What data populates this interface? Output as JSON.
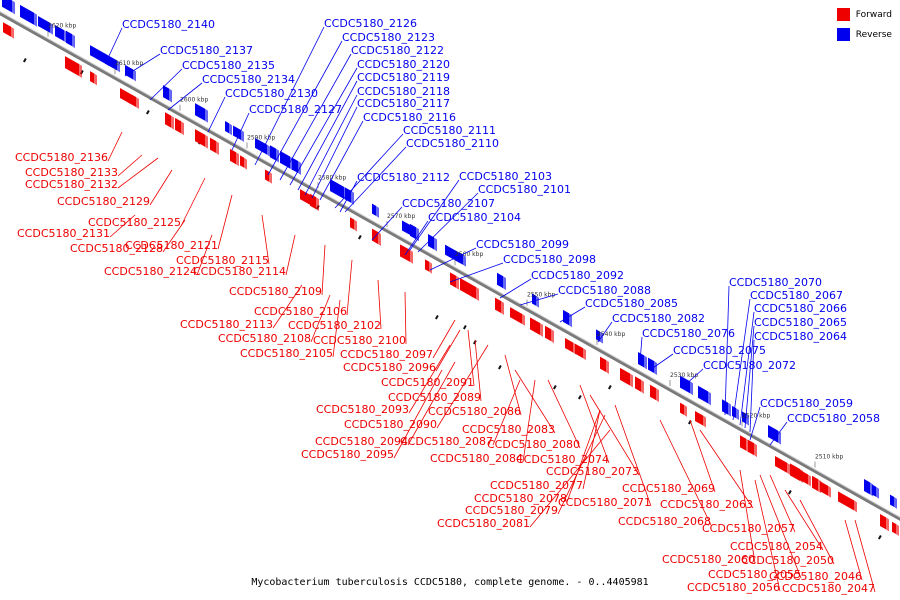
{
  "caption": "Mycobacterium tuberculosis CCDC5180, complete genome. - 0..4405981",
  "colors": {
    "forward": "#ee0000",
    "reverse": "#0000ee",
    "axis": "#888888"
  },
  "legend": [
    {
      "label": "Forward",
      "color": "#ee0000"
    },
    {
      "label": "Reverse",
      "color": "#0000ee"
    }
  ],
  "ticks": [
    "2620 kbp",
    "2610 kbp",
    "2600 kbp",
    "2590 kbp",
    "2580 kbp",
    "2570 kbp",
    "2560 kbp",
    "2550 kbp",
    "2540 kbp",
    "2530 kbp",
    "2520 kbp",
    "2510 kbp"
  ],
  "reverse_genes": [
    "CCDC5180_2140",
    "CCDC5180_2137",
    "CCDC5180_2135",
    "CCDC5180_2134",
    "CCDC5180_2130",
    "CCDC5180_2126",
    "CCDC5180_2123",
    "CCDC5180_2122",
    "CCDC5180_2120",
    "CCDC5180_2119",
    "CCDC5180_2118",
    "CCDC5180_2117",
    "CCDC5180_2127",
    "CCDC5180_2116",
    "CCDC5180_2111",
    "CCDC5180_2110",
    "CCDC5180_2112",
    "CCDC5180_2103",
    "CCDC5180_2101",
    "CCDC5180_2107",
    "CCDC5180_2104",
    "CCDC5180_2099",
    "CCDC5180_2098",
    "CCDC5180_2092",
    "CCDC5180_2088",
    "CCDC5180_2085",
    "CCDC5180_2082",
    "CCDC5180_2076",
    "CCDC5180_2075",
    "CCDC5180_2072",
    "CCDC5180_2070",
    "CCDC5180_2067",
    "CCDC5180_2066",
    "CCDC5180_2065",
    "CCDC5180_2064",
    "CCDC5180_2059",
    "CCDC5180_2058"
  ],
  "forward_genes": [
    "CCDC5180_2136",
    "CCDC5180_2133",
    "CCDC5180_2132",
    "CCDC5180_2129",
    "CCDC5180_2125",
    "CCDC5180_2131",
    "CCDC5180_2121",
    "CCDC5180_2128",
    "CCDC5180_2115",
    "CCDC5180_2124",
    "CCDC5180_2114",
    "CCDC5180_2109",
    "CCDC5180_2106",
    "CCDC5180_2113",
    "CCDC5180_2102",
    "CCDC5180_2108",
    "CCDC5180_2100",
    "CCDC5180_2105",
    "CCDC5180_2097",
    "CCDC5180_2096",
    "CCDC5180_2091",
    "CCDC5180_2089",
    "CCDC5180_2093",
    "CCDC5180_2086",
    "CCDC5180_2090",
    "CCDC5180_2083",
    "CCDC5180_2094",
    "CCDC5180_2087",
    "CCDC5180_2080",
    "CCDC5180_2095",
    "CCDC5180_2084",
    "CCDC5180_2074",
    "CCDC5180_2073",
    "CCDC5180_2077",
    "CCDC5180_2071",
    "CCDC5180_2069",
    "CCDC5180_2078",
    "CCDC5180_2079",
    "CCDC5180_2063",
    "CCDC5180_2068",
    "CCDC5180_2081",
    "CCDC5180_2057",
    "CCDC5180_2054",
    "CCDC5180_2060",
    "CCDC5180_2050",
    "CCDC5180_2055",
    "CCDC5180_2046",
    "CCDC5180_2056",
    "CCDC5180_2047"
  ]
}
